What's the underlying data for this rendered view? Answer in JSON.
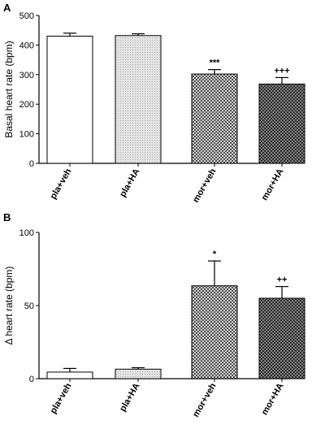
{
  "chart_data": [
    {
      "type": "bar",
      "panel_label": "A",
      "categories": [
        "pla+veh",
        "pla+HA",
        "mor+veh",
        "mor+HA"
      ],
      "values": [
        430,
        432,
        302,
        268
      ],
      "errors": [
        10,
        6,
        15,
        22
      ],
      "annotations": [
        "",
        "",
        "***",
        "+++"
      ],
      "patterns": [
        "white",
        "light-dots",
        "crosshatch",
        "dark-crosshatch"
      ],
      "ylabel": "Basal heart rate (bpm)",
      "ylim": [
        0,
        500
      ],
      "yticks": [
        "0",
        "100",
        "200",
        "300",
        "400",
        "500"
      ],
      "grid": false
    },
    {
      "type": "bar",
      "panel_label": "B",
      "categories": [
        "pla+veh",
        "pla+HA",
        "mor+veh",
        "mor+HA"
      ],
      "values": [
        4.5,
        6.5,
        63.5,
        55.0
      ],
      "errors": [
        2.5,
        1.0,
        17.0,
        8.0
      ],
      "annotations": [
        "",
        "",
        "*",
        "++"
      ],
      "patterns": [
        "white",
        "light-dots",
        "crosshatch",
        "dark-crosshatch"
      ],
      "ylabel": "Δ heart rate (bpm)",
      "ylim": [
        0,
        100
      ],
      "yticks": [
        "0",
        "50",
        "100"
      ],
      "grid": false
    }
  ]
}
